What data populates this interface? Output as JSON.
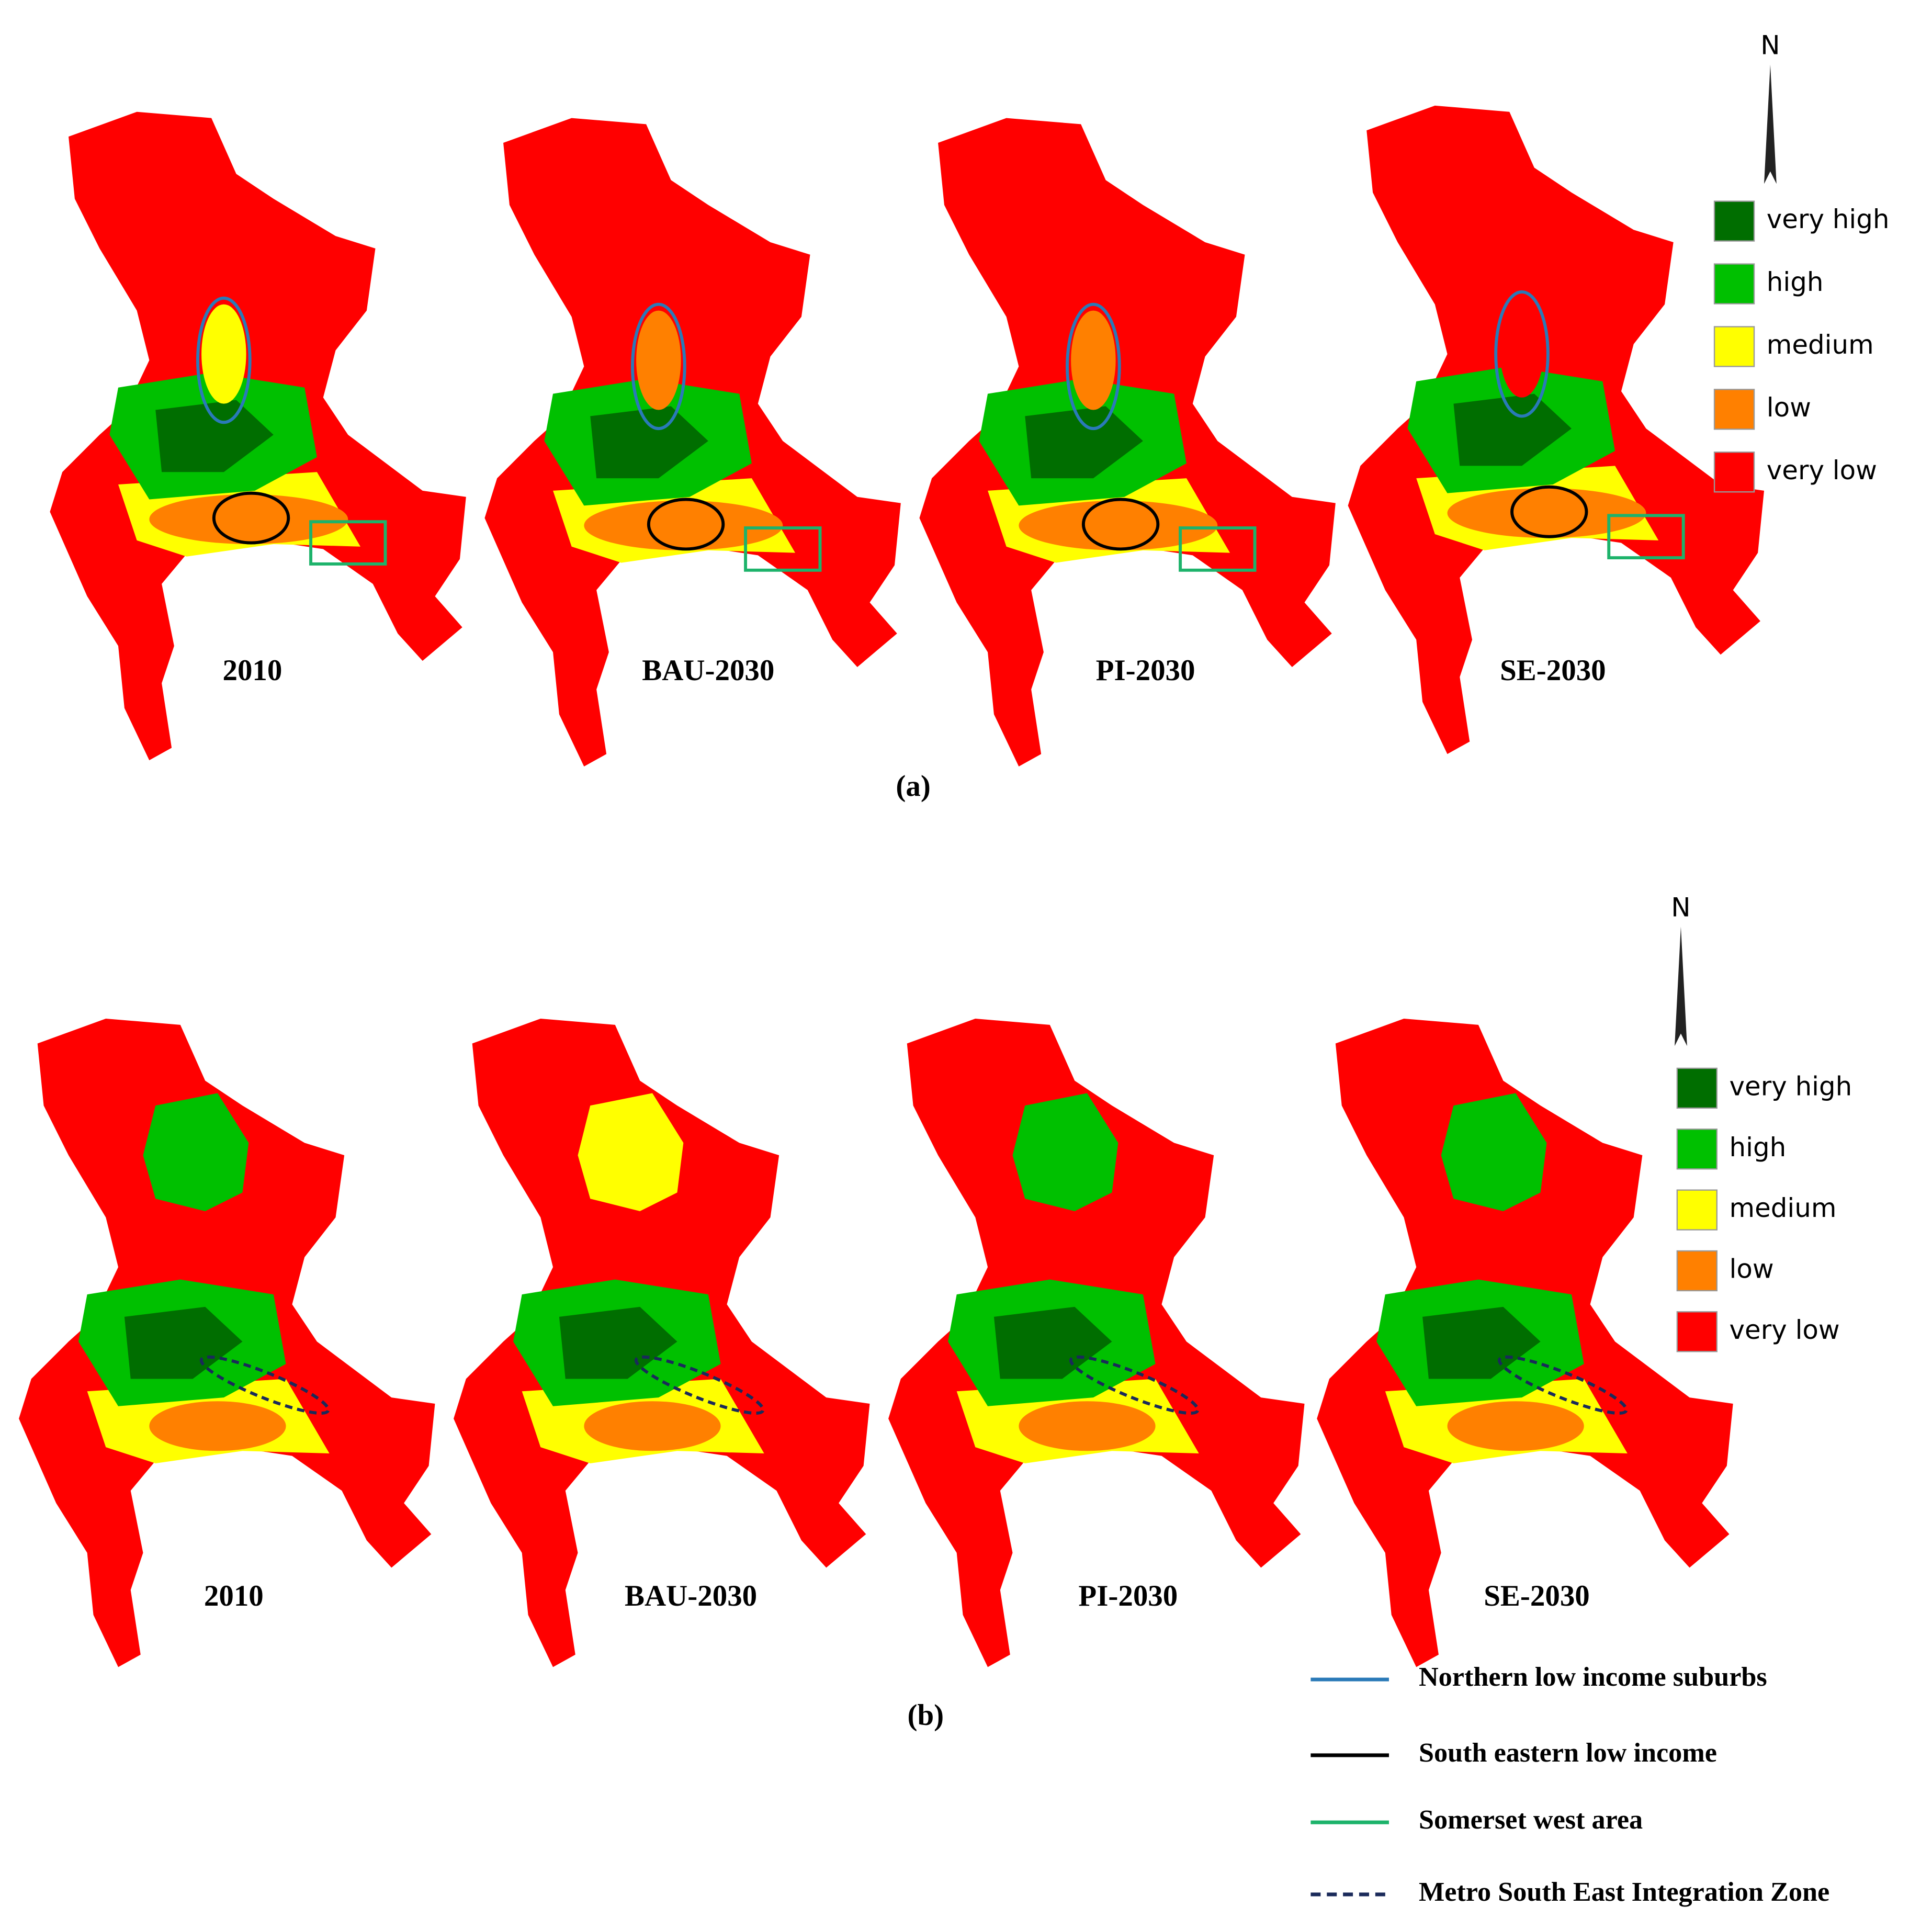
{
  "panels": [
    {
      "label": "(a)",
      "maps": [
        "2010",
        "BAU-2030",
        "PI-2030",
        "SE-2030"
      ],
      "north": "N"
    },
    {
      "label": "(b)",
      "maps": [
        "2010",
        "BAU-2030",
        "PI-2030",
        "SE-2030"
      ],
      "north": "N"
    }
  ],
  "classes": [
    {
      "name": "very high",
      "color": "#006e00"
    },
    {
      "name": "high",
      "color": "#00c000"
    },
    {
      "name": "medium",
      "color": "#ffff00"
    },
    {
      "name": "low",
      "color": "#ff8000"
    },
    {
      "name": "very low",
      "color": "#ff0000"
    }
  ],
  "annotations": [
    {
      "label": "Northern low income suburbs",
      "color": "#2a7ab8",
      "dashed": false
    },
    {
      "label": "South eastern low income",
      "color": "#000000",
      "dashed": false
    },
    {
      "label": "Somerset west area",
      "color": "#1db36b",
      "dashed": false
    },
    {
      "label": "Metro South East Integration Zone",
      "color": "#1a2a5a",
      "dashed": true
    }
  ]
}
